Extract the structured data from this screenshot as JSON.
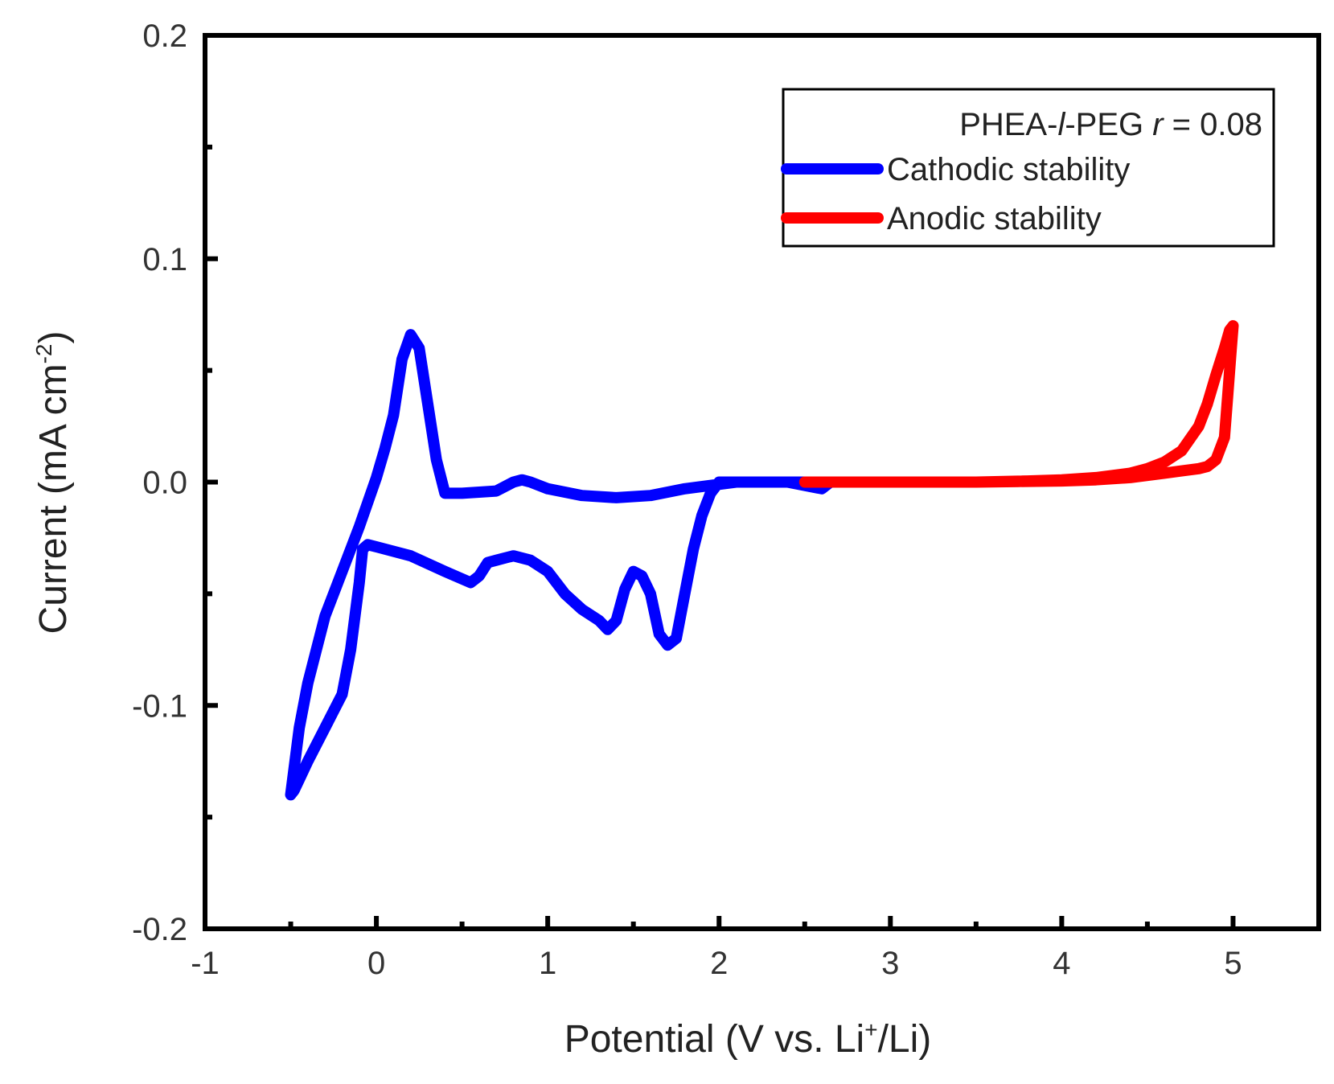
{
  "chart_data": {
    "type": "line",
    "title": "",
    "xlabel": "Potential (V vs. Li+/Li)",
    "xlabel_parts": {
      "pre": "Potential (V vs. Li",
      "sup": "+",
      "post": "/Li)"
    },
    "ylabel": "Current (mA cm-2)",
    "ylabel_parts": {
      "pre": "Current (mA cm",
      "sup": "-2",
      "post": ")"
    },
    "xlim": [
      -1,
      5.5
    ],
    "ylim": [
      -0.2,
      0.2
    ],
    "x_ticks": [
      -1,
      0,
      1,
      2,
      3,
      4,
      5
    ],
    "x_tick_labels": [
      "-1",
      "0",
      "1",
      "2",
      "3",
      "4",
      "5"
    ],
    "y_ticks": [
      -0.2,
      -0.1,
      0.0,
      0.1,
      0.2
    ],
    "y_tick_labels": [
      "-0.2",
      "-0.1",
      "0.0",
      "0.1",
      "0.2"
    ],
    "grid": false,
    "legend": {
      "placement": "top-right",
      "header_parts": [
        "PHEA-",
        "l",
        "-PEG ",
        "r",
        " = 0.08"
      ]
    },
    "series": [
      {
        "name": "Cathodic stability",
        "color": "#0000ff",
        "x": [
          2.65,
          2.5,
          2.3,
          2.1,
          2.0,
          1.8,
          1.6,
          1.4,
          1.2,
          1.0,
          0.9,
          0.85,
          0.8,
          0.7,
          0.5,
          0.4,
          0.35,
          0.3,
          0.25,
          0.2,
          0.15,
          0.1,
          0.05,
          0.0,
          -0.1,
          -0.2,
          -0.3,
          -0.4,
          -0.45,
          -0.5,
          -0.48,
          -0.4,
          -0.3,
          -0.2,
          -0.15,
          -0.1,
          -0.08,
          -0.05,
          0.0,
          0.2,
          0.4,
          0.55,
          0.6,
          0.65,
          0.7,
          0.75,
          0.8,
          0.9,
          1.0,
          1.1,
          1.2,
          1.3,
          1.35,
          1.4,
          1.45,
          1.5,
          1.55,
          1.6,
          1.65,
          1.7,
          1.75,
          1.8,
          1.85,
          1.9,
          1.95,
          2.0,
          2.1,
          2.2,
          2.4,
          2.6,
          2.65
        ],
        "y": [
          0.0,
          0.0,
          0.0,
          0.0,
          -0.001,
          -0.003,
          -0.006,
          -0.007,
          -0.006,
          -0.003,
          0.0,
          0.001,
          0.0,
          -0.004,
          -0.005,
          -0.005,
          0.01,
          0.035,
          0.06,
          0.066,
          0.055,
          0.03,
          0.015,
          0.002,
          -0.02,
          -0.04,
          -0.06,
          -0.09,
          -0.11,
          -0.14,
          -0.138,
          -0.125,
          -0.11,
          -0.095,
          -0.075,
          -0.045,
          -0.03,
          -0.028,
          -0.029,
          -0.033,
          -0.04,
          -0.045,
          -0.042,
          -0.036,
          -0.035,
          -0.034,
          -0.033,
          -0.035,
          -0.04,
          -0.05,
          -0.057,
          -0.062,
          -0.066,
          -0.062,
          -0.048,
          -0.04,
          -0.042,
          -0.05,
          -0.068,
          -0.073,
          -0.07,
          -0.05,
          -0.03,
          -0.015,
          -0.005,
          0.0,
          0.0,
          0.0,
          0.0,
          -0.003,
          0.0
        ]
      },
      {
        "name": "Anodic stability",
        "color": "#ff0000",
        "x": [
          2.5,
          3.0,
          3.5,
          3.8,
          4.0,
          4.2,
          4.4,
          4.5,
          4.6,
          4.7,
          4.8,
          4.85,
          4.9,
          4.95,
          4.98,
          5.0,
          4.99,
          4.97,
          4.95,
          4.9,
          4.85,
          4.8,
          4.7,
          4.6,
          4.5,
          4.4,
          4.2,
          4.0,
          3.5,
          3.0,
          2.5
        ],
        "y": [
          0.0,
          0.0,
          0.0,
          0.0005,
          0.001,
          0.002,
          0.004,
          0.006,
          0.009,
          0.014,
          0.025,
          0.035,
          0.048,
          0.06,
          0.068,
          0.07,
          0.06,
          0.04,
          0.02,
          0.01,
          0.007,
          0.006,
          0.005,
          0.004,
          0.003,
          0.002,
          0.001,
          0.0005,
          0.0,
          0.0,
          0.0
        ]
      }
    ]
  }
}
